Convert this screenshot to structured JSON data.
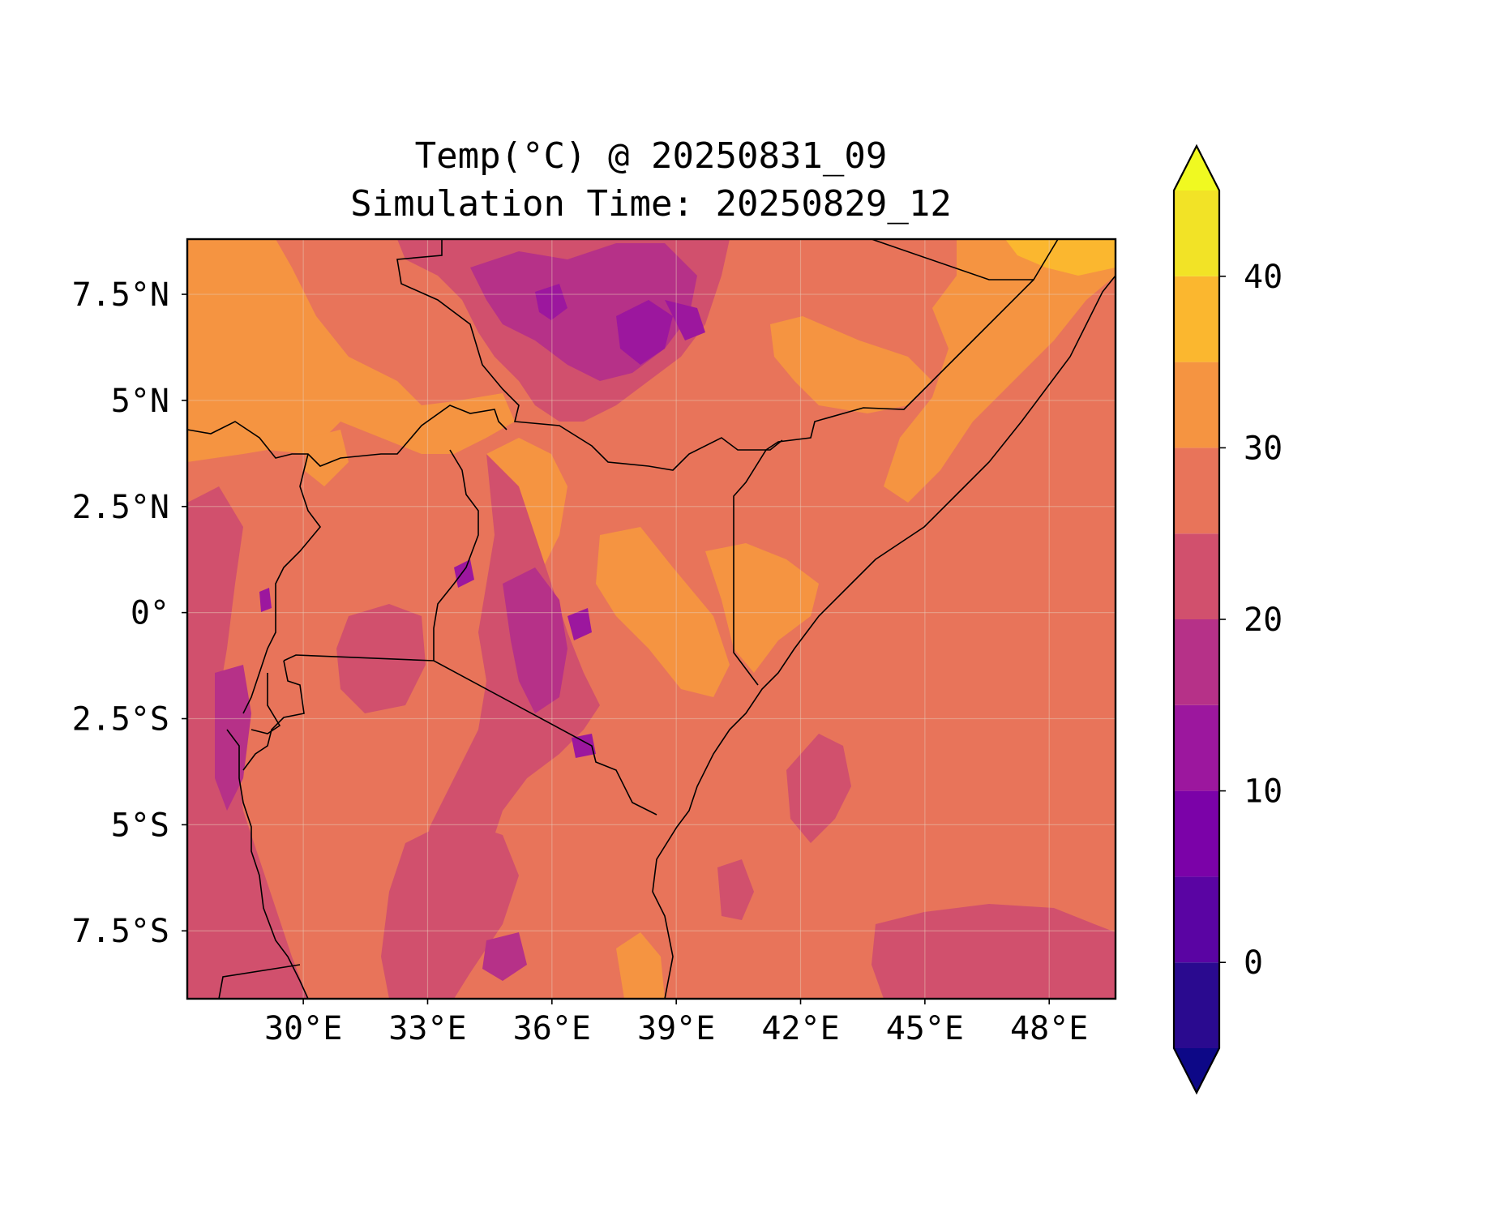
{
  "title": {
    "line1": "Temp(°C) @ 20250831_09",
    "line2": "Simulation Time: 20250829_12"
  },
  "map": {
    "variable": "Temp(°C)",
    "lon_range": [
      27.2,
      49.6
    ],
    "lat_range": [
      -9.1,
      8.8
    ],
    "x_ticks": [
      {
        "value": 30,
        "label": "30°E"
      },
      {
        "value": 33,
        "label": "33°E"
      },
      {
        "value": 36,
        "label": "36°E"
      },
      {
        "value": 39,
        "label": "39°E"
      },
      {
        "value": 42,
        "label": "42°E"
      },
      {
        "value": 45,
        "label": "45°E"
      },
      {
        "value": 48,
        "label": "48°E"
      }
    ],
    "y_ticks": [
      {
        "value": 7.5,
        "label": "7.5°N"
      },
      {
        "value": 5,
        "label": "5°N"
      },
      {
        "value": 2.5,
        "label": "2.5°N"
      },
      {
        "value": 0,
        "label": "0°"
      },
      {
        "value": -2.5,
        "label": "2.5°S"
      },
      {
        "value": -5,
        "label": "5°S"
      },
      {
        "value": -7.5,
        "label": "7.5°S"
      }
    ],
    "grid": true
  },
  "colorbar": {
    "min": -5,
    "max": 45,
    "extend": "both",
    "colormap": "plasma",
    "levels": [
      {
        "from": -5,
        "to": 0,
        "color": "#2a0a8f"
      },
      {
        "from": 0,
        "to": 5,
        "color": "#5a04a3"
      },
      {
        "from": 5,
        "to": 10,
        "color": "#7b02a8"
      },
      {
        "from": 10,
        "to": 15,
        "color": "#9c179e"
      },
      {
        "from": 15,
        "to": 20,
        "color": "#b63188"
      },
      {
        "from": 20,
        "to": 25,
        "color": "#d1506d"
      },
      {
        "from": 25,
        "to": 30,
        "color": "#e8745a"
      },
      {
        "from": 30,
        "to": 35,
        "color": "#f59441"
      },
      {
        "from": 35,
        "to": 40,
        "color": "#fbb72f"
      },
      {
        "from": 40,
        "to": 45,
        "color": "#f2e326"
      }
    ],
    "under_color": "#0d0887",
    "over_color": "#f0f921",
    "ticks": [
      {
        "value": 0,
        "label": "0"
      },
      {
        "value": 10,
        "label": "10"
      },
      {
        "value": 20,
        "label": "20"
      },
      {
        "value": 30,
        "label": "30"
      },
      {
        "value": 40,
        "label": "40"
      }
    ]
  }
}
